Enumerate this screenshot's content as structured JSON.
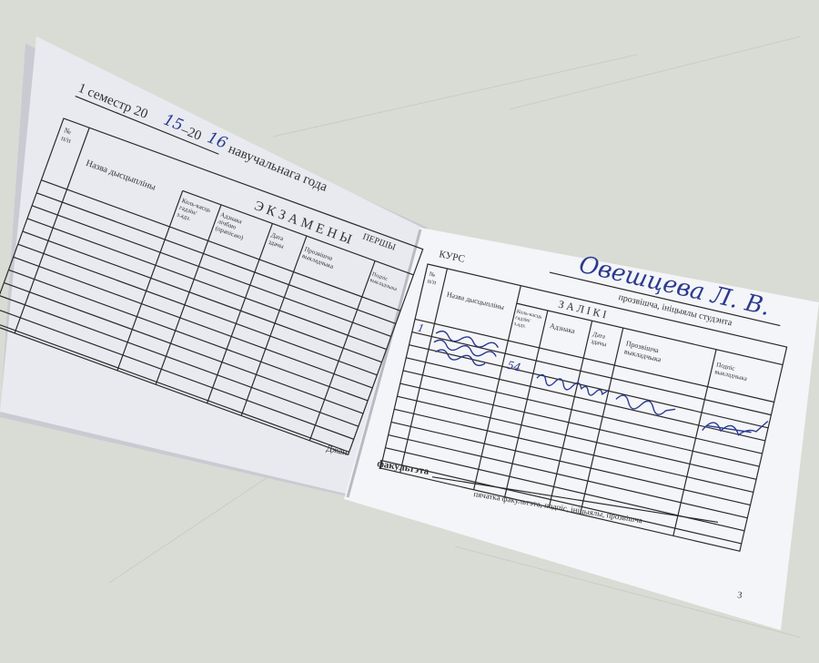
{
  "colors": {
    "background": "#d9dcd4",
    "paper_left": "#e9eaf0",
    "paper_right": "#f4f5f8",
    "ink": "#2b3a8f",
    "print": "#333333"
  },
  "left_page": {
    "semester_prefix": "1 семестр 20",
    "year_from": "15",
    "year_mid": "–20",
    "year_to": "16",
    "semester_suffix": "навучальнага года",
    "section_title": "ЭКЗАМЕНЫ",
    "course_word": "ПЕРШЫ",
    "columns": [
      "№ п/п",
      "Назва дысцыпліны",
      "Коль-касць гадзін/ з.адз.",
      "Адзнака лічбаю (прапісаю)",
      "Дата здачы",
      "Прозвішча выкладчыка",
      "Подпіс выкладчыка"
    ],
    "footer": "Джан"
  },
  "right_page": {
    "course_label": "КУРС",
    "student_name": "Овешцева Л. В.",
    "student_caption": "прозвішча, ініцыялы студэнта",
    "section_title": "ЗАЛІКІ",
    "columns": [
      "№ п/п",
      "Назва дысцыпліны",
      "Коль-касць гадзін/ з.адз.",
      "Адзнака",
      "Дата здачы",
      "Прозвішча выкладчыка",
      "Подпіс выкладчыка"
    ],
    "entries": [
      {
        "number": "1",
        "hours": "54"
      }
    ],
    "faculty_label": "факультэта",
    "stamp_caption": "пячатка факультэта, подпіс, ініцыялы, прозвішча",
    "page_number": "3"
  }
}
